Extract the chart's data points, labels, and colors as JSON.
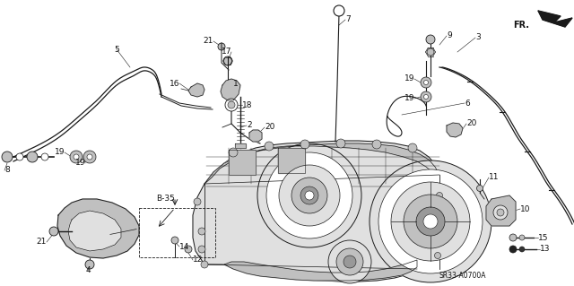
{
  "bg_color": "#ffffff",
  "line_color": "#1a1a1a",
  "text_color": "#111111",
  "diagram_code": "SR33-A0700A",
  "font_size": 6.5,
  "lw_main": 0.7,
  "lw_thin": 0.5,
  "lw_thick": 1.1,
  "gray_light": "#e0e0e0",
  "gray_mid": "#c0c0c0",
  "gray_dark": "#999999",
  "white": "#ffffff"
}
